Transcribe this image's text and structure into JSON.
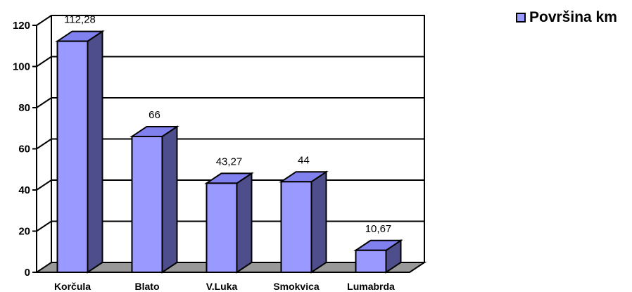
{
  "chart_data": {
    "type": "bar",
    "style": "3d-column",
    "categories": [
      "Korčula",
      "Blato",
      "V.Luka",
      "Smokvica",
      "Lumabrda"
    ],
    "series": [
      {
        "name": "Površina km",
        "values": [
          112.28,
          66,
          43.27,
          44,
          10.67
        ],
        "data_labels": [
          "112,28",
          "66",
          "43,27",
          "44",
          "10,67"
        ]
      }
    ],
    "y_ticks": [
      0,
      20,
      40,
      60,
      80,
      100,
      120
    ],
    "ylim": [
      0,
      120
    ],
    "grid": true,
    "legend_position": "top-right",
    "colors": {
      "bar_front": "#9999ff",
      "bar_side": "#4e4e8c",
      "bar_top": "#8080ee",
      "floor": "#999999",
      "grid": "#000000"
    }
  },
  "legend": {
    "label": "Površina km"
  }
}
